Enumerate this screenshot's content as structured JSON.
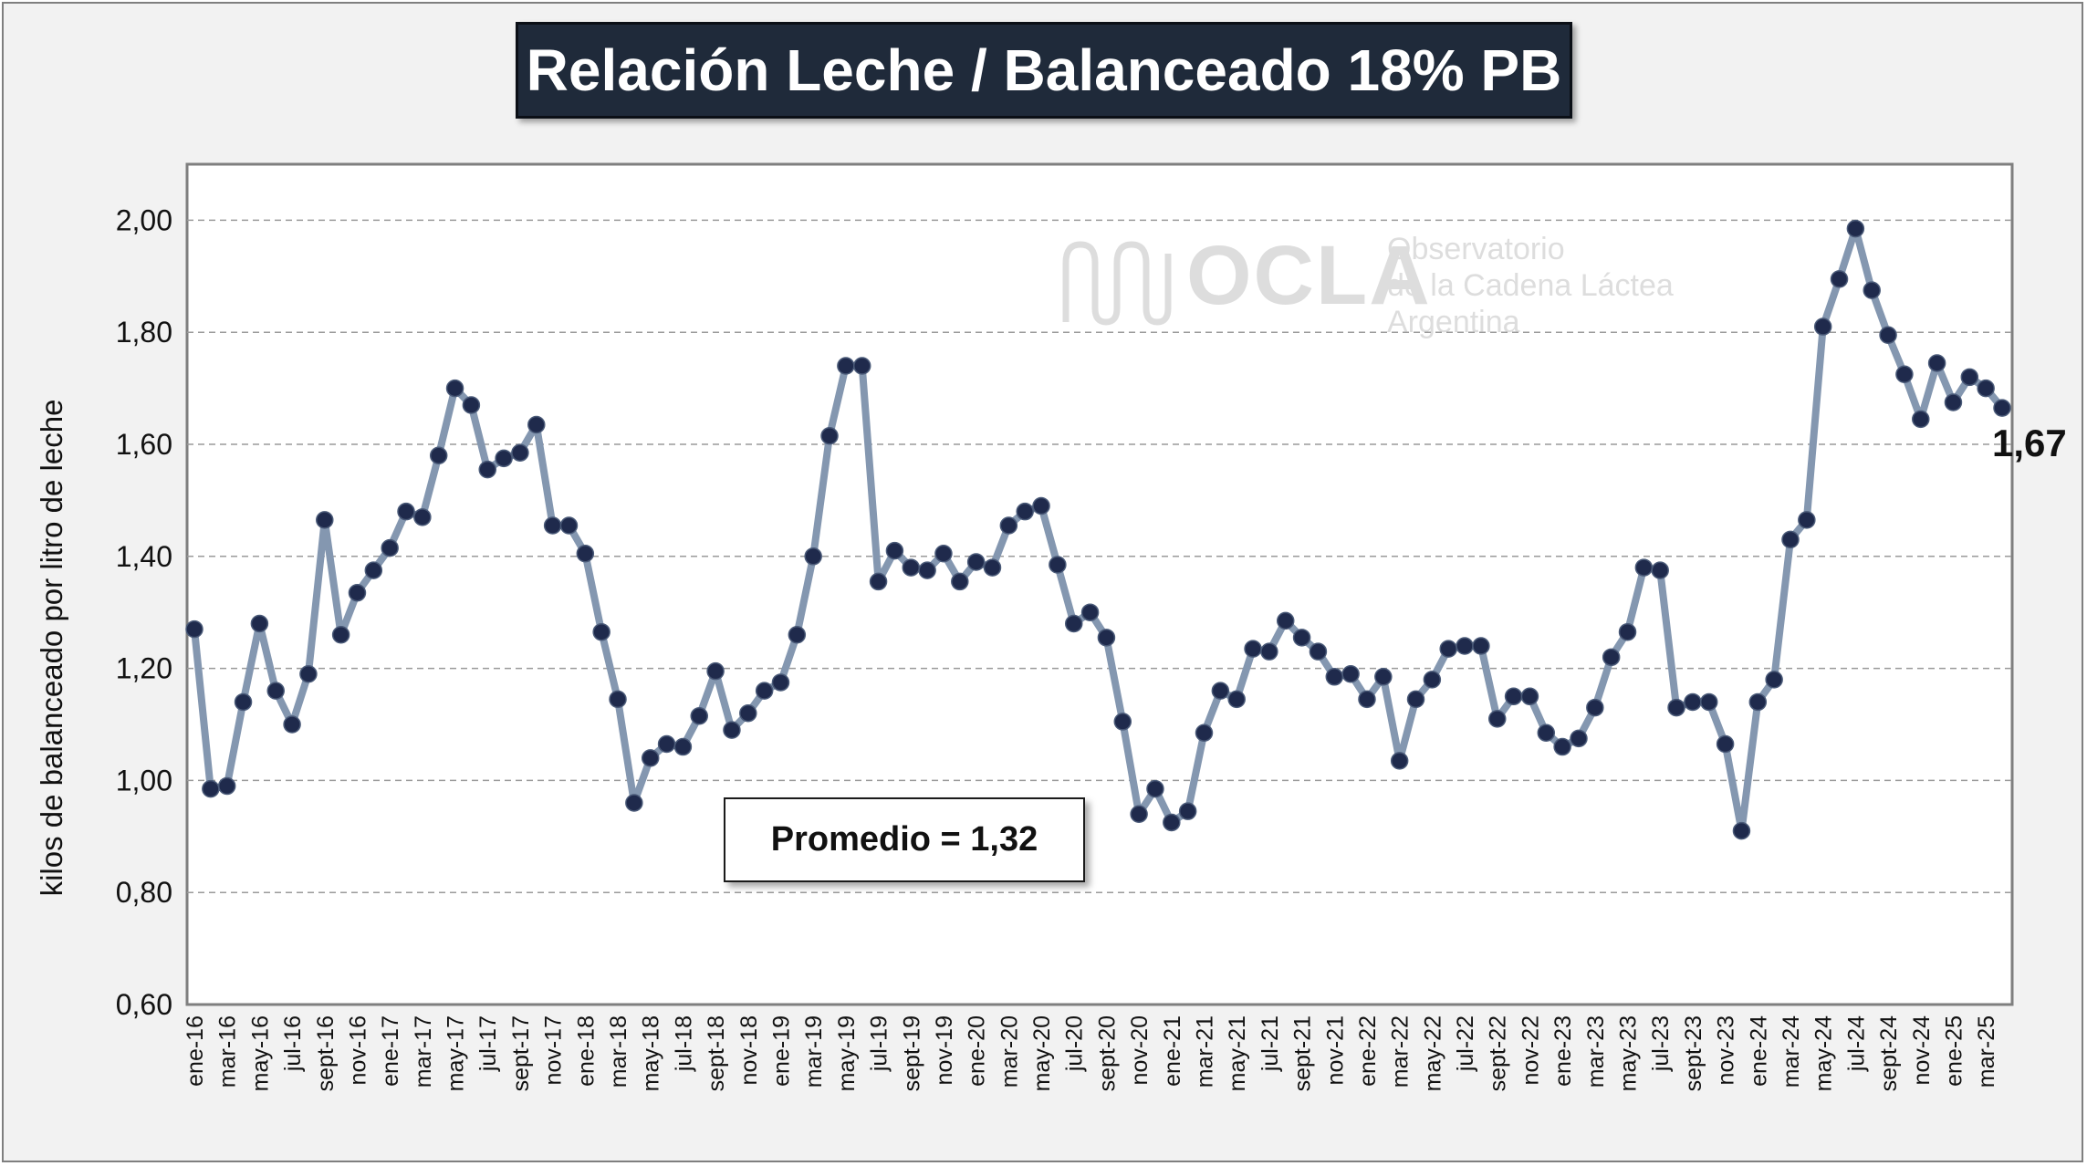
{
  "chart_data": {
    "type": "line",
    "title": "Relación Leche / Balanceado 18% PB",
    "ylabel": "kilos de balanceado por litro de leche",
    "ylim": [
      0.6,
      2.0
    ],
    "yticks": [
      "0,60",
      "0,80",
      "1,00",
      "1,20",
      "1,40",
      "1,60",
      "1,80",
      "2,00"
    ],
    "grid": "horizontal-dashed",
    "line_color": "#8497b0",
    "marker_color": "#1f2a4c",
    "x": [
      "ene-16",
      "feb-16",
      "mar-16",
      "abr-16",
      "may-16",
      "jun-16",
      "jul-16",
      "ago-16",
      "sept-16",
      "oct-16",
      "nov-16",
      "dic-16",
      "ene-17",
      "feb-17",
      "mar-17",
      "abr-17",
      "may-17",
      "jun-17",
      "jul-17",
      "ago-17",
      "sept-17",
      "oct-17",
      "nov-17",
      "dic-17",
      "ene-18",
      "feb-18",
      "mar-18",
      "abr-18",
      "may-18",
      "jun-18",
      "jul-18",
      "ago-18",
      "sept-18",
      "oct-18",
      "nov-18",
      "dic-18",
      "ene-19",
      "feb-19",
      "mar-19",
      "abr-19",
      "may-19",
      "jun-19",
      "jul-19",
      "ago-19",
      "sept-19",
      "oct-19",
      "nov-19",
      "dic-19",
      "ene-20",
      "feb-20",
      "mar-20",
      "abr-20",
      "may-20",
      "jun-20",
      "jul-20",
      "ago-20",
      "sept-20",
      "oct-20",
      "nov-20",
      "dic-20",
      "ene-21",
      "feb-21",
      "mar-21",
      "abr-21",
      "may-21",
      "jun-21",
      "jul-21",
      "ago-21",
      "sept-21",
      "oct-21",
      "nov-21",
      "dic-21",
      "ene-22",
      "feb-22",
      "mar-22",
      "abr-22",
      "may-22",
      "jun-22",
      "jul-22",
      "ago-22",
      "sept-22",
      "oct-22",
      "nov-22",
      "dic-22",
      "ene-23",
      "feb-23",
      "mar-23",
      "abr-23",
      "may-23",
      "jun-23",
      "jul-23",
      "ago-23",
      "sept-23",
      "oct-23",
      "nov-23",
      "dic-23",
      "ene-24",
      "feb-24",
      "mar-24",
      "abr-24",
      "may-24",
      "jun-24",
      "jul-24",
      "ago-24",
      "sept-24",
      "oct-24",
      "nov-24",
      "dic-24",
      "ene-25",
      "feb-25",
      "mar-25",
      "abr-25"
    ],
    "x_tick_labels": [
      "ene-16",
      "mar-16",
      "may-16",
      "jul-16",
      "sept-16",
      "nov-16",
      "ene-17",
      "mar-17",
      "may-17",
      "jul-17",
      "sept-17",
      "nov-17",
      "ene-18",
      "mar-18",
      "may-18",
      "jul-18",
      "sept-18",
      "nov-18",
      "ene-19",
      "mar-19",
      "may-19",
      "jul-19",
      "sept-19",
      "nov-19",
      "ene-20",
      "mar-20",
      "may-20",
      "jul-20",
      "sept-20",
      "nov-20",
      "ene-21",
      "mar-21",
      "may-21",
      "jul-21",
      "sept-21",
      "nov-21",
      "ene-22",
      "mar-22",
      "may-22",
      "jul-22",
      "sept-22",
      "nov-22",
      "ene-23",
      "mar-23",
      "may-23",
      "jul-23",
      "sept-23",
      "nov-23",
      "ene-24",
      "mar-24",
      "may-24",
      "jul-24",
      "sept-24",
      "nov-24",
      "ene-25",
      "mar-25"
    ],
    "values": [
      1.27,
      0.985,
      0.99,
      1.14,
      1.28,
      1.16,
      1.1,
      1.19,
      1.465,
      1.26,
      1.335,
      1.375,
      1.415,
      1.48,
      1.47,
      1.58,
      1.7,
      1.67,
      1.555,
      1.575,
      1.585,
      1.635,
      1.455,
      1.455,
      1.405,
      1.265,
      1.145,
      0.96,
      1.04,
      1.065,
      1.06,
      1.115,
      1.195,
      1.09,
      1.12,
      1.16,
      1.175,
      1.26,
      1.4,
      1.615,
      1.74,
      1.74,
      1.355,
      1.41,
      1.38,
      1.375,
      1.405,
      1.355,
      1.39,
      1.38,
      1.455,
      1.48,
      1.49,
      1.385,
      1.28,
      1.3,
      1.255,
      1.105,
      0.94,
      0.985,
      0.925,
      0.945,
      1.085,
      1.16,
      1.145,
      1.235,
      1.23,
      1.285,
      1.255,
      1.23,
      1.185,
      1.19,
      1.145,
      1.185,
      1.035,
      1.145,
      1.18,
      1.235,
      1.24,
      1.24,
      1.11,
      1.15,
      1.15,
      1.085,
      1.06,
      1.075,
      1.13,
      1.22,
      1.265,
      1.38,
      1.375,
      1.13,
      1.14,
      1.14,
      1.065,
      0.91,
      1.14,
      1.18,
      1.43,
      1.465,
      1.81,
      1.895,
      1.985,
      1.875,
      1.795,
      1.725,
      1.645,
      1.745,
      1.675,
      1.72,
      1.7,
      1.665
    ],
    "annotations": {
      "average": "Promedio = 1,32",
      "last_value": "1,67"
    }
  },
  "watermark": {
    "logo": "OCLA",
    "line1": "Observatorio",
    "line2": "de la Cadena Láctea",
    "line3": "Argentina"
  }
}
